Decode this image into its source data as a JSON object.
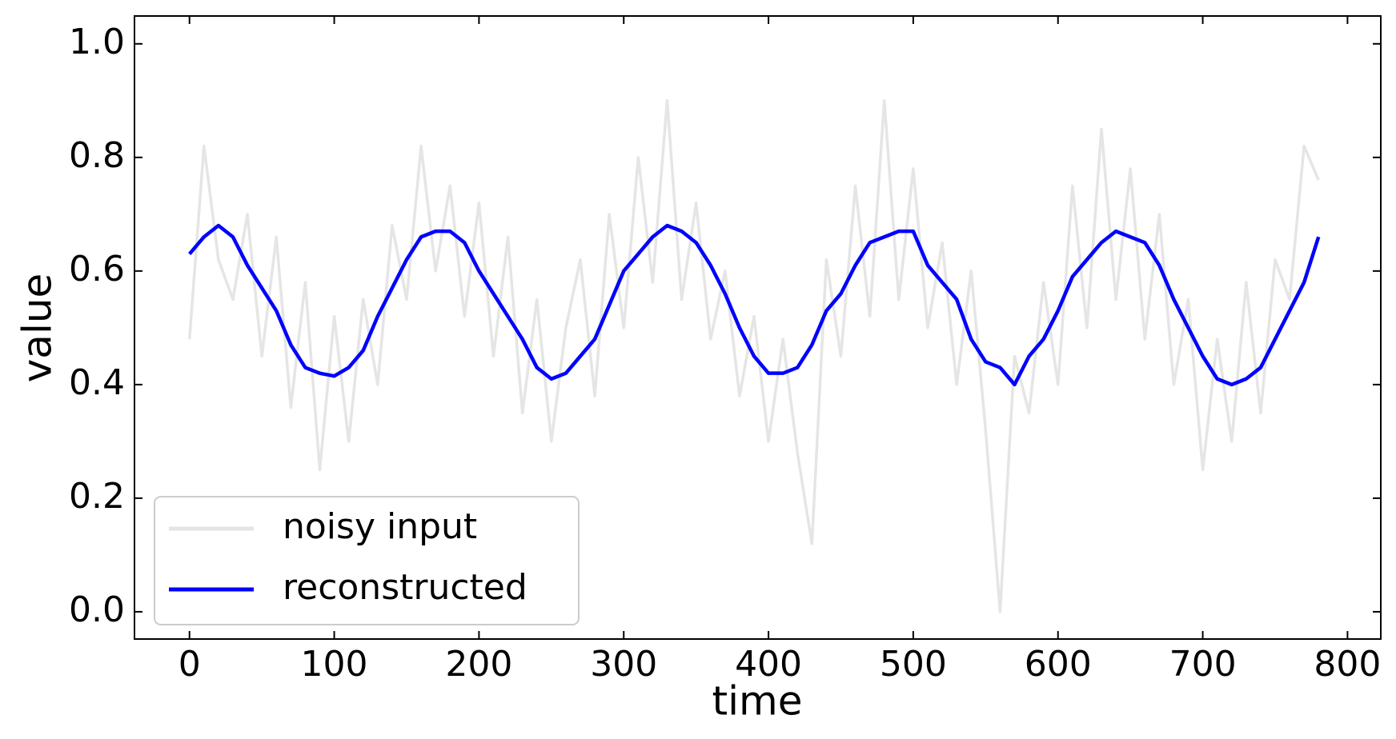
{
  "chart_data": {
    "type": "line",
    "x_label": "time",
    "y_label": "value",
    "x": [
      0,
      10,
      20,
      30,
      40,
      50,
      60,
      70,
      80,
      90,
      100,
      110,
      120,
      130,
      140,
      150,
      160,
      170,
      180,
      190,
      200,
      210,
      220,
      230,
      240,
      250,
      260,
      270,
      280,
      290,
      300,
      310,
      320,
      330,
      340,
      350,
      360,
      370,
      380,
      390,
      400,
      410,
      420,
      430,
      440,
      450,
      460,
      470,
      480,
      490,
      500,
      510,
      520,
      530,
      540,
      550,
      560,
      570,
      580,
      590,
      600,
      610,
      620,
      630,
      640,
      650,
      660,
      670,
      680,
      690,
      700,
      710,
      720,
      730,
      740,
      750,
      760,
      770,
      780
    ],
    "series": [
      {
        "name": "noisy input",
        "color": "#e5e5e5",
        "values": [
          0.48,
          0.82,
          0.62,
          0.55,
          0.7,
          0.45,
          0.66,
          0.36,
          0.58,
          0.25,
          0.52,
          0.3,
          0.55,
          0.4,
          0.68,
          0.55,
          0.82,
          0.6,
          0.75,
          0.52,
          0.72,
          0.45,
          0.66,
          0.35,
          0.55,
          0.3,
          0.5,
          0.62,
          0.38,
          0.7,
          0.5,
          0.8,
          0.58,
          0.9,
          0.55,
          0.72,
          0.48,
          0.6,
          0.38,
          0.52,
          0.3,
          0.48,
          0.28,
          0.12,
          0.62,
          0.45,
          0.75,
          0.52,
          0.9,
          0.55,
          0.78,
          0.5,
          0.65,
          0.4,
          0.6,
          0.32,
          0.0,
          0.45,
          0.35,
          0.58,
          0.4,
          0.75,
          0.5,
          0.85,
          0.55,
          0.78,
          0.48,
          0.7,
          0.4,
          0.55,
          0.25,
          0.48,
          0.3,
          0.58,
          0.35,
          0.62,
          0.55,
          0.82,
          0.76
        ]
      },
      {
        "name": "reconstructed",
        "color": "#0000ff",
        "values": [
          0.63,
          0.66,
          0.68,
          0.66,
          0.61,
          0.57,
          0.53,
          0.47,
          0.43,
          0.42,
          0.415,
          0.43,
          0.46,
          0.52,
          0.57,
          0.62,
          0.66,
          0.67,
          0.67,
          0.65,
          0.6,
          0.56,
          0.52,
          0.48,
          0.43,
          0.41,
          0.42,
          0.45,
          0.48,
          0.54,
          0.6,
          0.63,
          0.66,
          0.68,
          0.67,
          0.65,
          0.61,
          0.56,
          0.5,
          0.45,
          0.42,
          0.42,
          0.43,
          0.47,
          0.53,
          0.56,
          0.61,
          0.65,
          0.66,
          0.67,
          0.67,
          0.61,
          0.58,
          0.55,
          0.48,
          0.44,
          0.43,
          0.4,
          0.45,
          0.48,
          0.53,
          0.59,
          0.62,
          0.65,
          0.67,
          0.66,
          0.65,
          0.61,
          0.55,
          0.5,
          0.45,
          0.41,
          0.4,
          0.41,
          0.43,
          0.48,
          0.53,
          0.58,
          0.66
        ]
      }
    ],
    "xlim": [
      -38,
      823
    ],
    "ylim": [
      -0.048,
      1.049
    ],
    "xticks": [
      0,
      100,
      200,
      300,
      400,
      500,
      600,
      700,
      800
    ],
    "yticks": [
      {
        "value": 0,
        "label": "0.0"
      },
      0.2,
      0.4,
      0.6,
      0.8,
      {
        "value": 1,
        "label": "1.0"
      }
    ],
    "legend": "lower left"
  }
}
